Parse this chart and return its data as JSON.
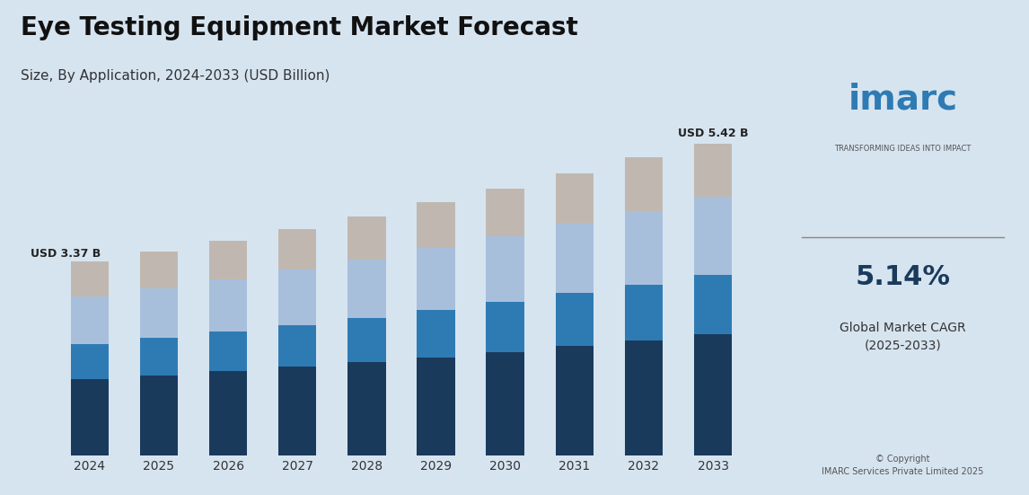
{
  "title": "Eye Testing Equipment Market Forecast",
  "subtitle": "Size, By Application, 2024-2033 (USD Billion)",
  "years": [
    2024,
    2025,
    2026,
    2027,
    2028,
    2029,
    2030,
    2031,
    2032,
    2033
  ],
  "series": {
    "General Examination": [
      1.32,
      1.39,
      1.46,
      1.54,
      1.62,
      1.71,
      1.8,
      1.9,
      2.0,
      2.11
    ],
    "Glaucoma": [
      0.62,
      0.65,
      0.69,
      0.73,
      0.77,
      0.82,
      0.87,
      0.92,
      0.97,
      1.03
    ],
    "Cataract": [
      0.82,
      0.86,
      0.91,
      0.96,
      1.02,
      1.08,
      1.14,
      1.21,
      1.28,
      1.36
    ],
    "Others": [
      0.61,
      0.64,
      0.67,
      0.71,
      0.75,
      0.79,
      0.83,
      0.88,
      0.93,
      0.92
    ]
  },
  "colors": {
    "General Examination": "#1a3a5c",
    "Glaucoma": "#2e7bb4",
    "Cataract": "#a8bfdb",
    "Others": "#c0b8b0"
  },
  "annotation_2024": "USD 3.37 B",
  "annotation_2033": "USD 5.42 B",
  "ylim": [
    0,
    6.2
  ],
  "background_color": "#d6e4f0",
  "bar_width": 0.55,
  "title_fontsize": 20,
  "subtitle_fontsize": 11
}
